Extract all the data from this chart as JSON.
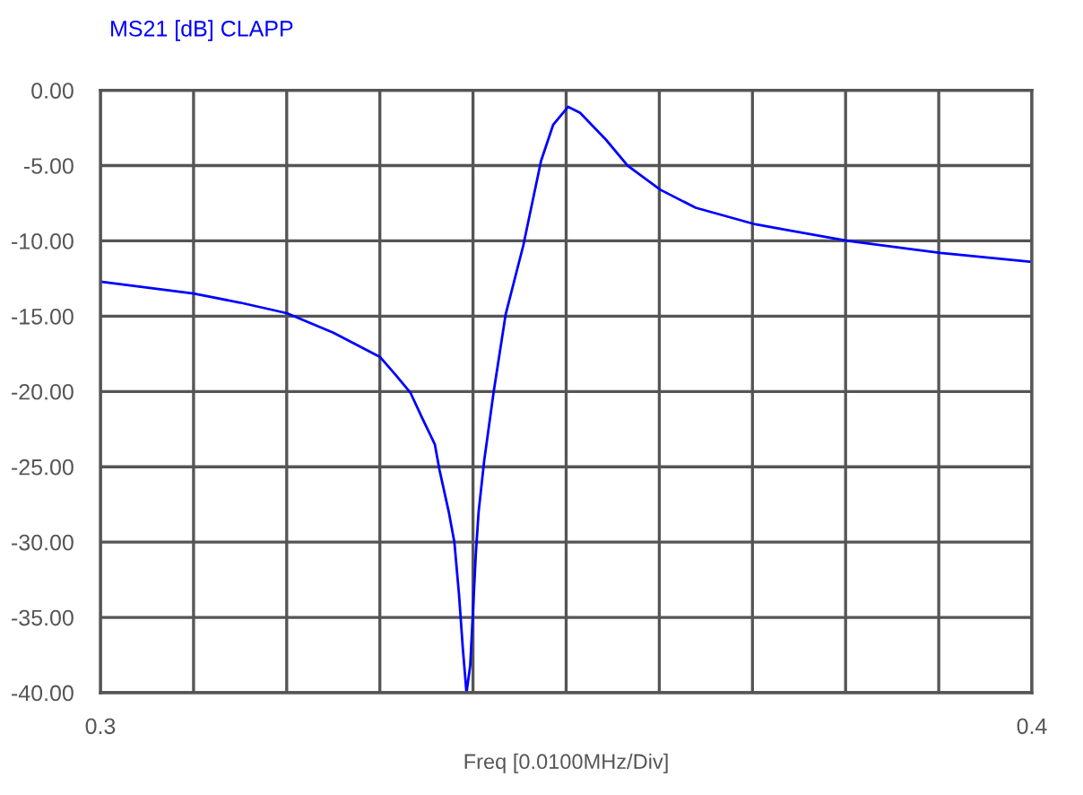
{
  "chart_data": {
    "type": "line",
    "title": "MS21 [dB] CLAPP",
    "xlabel": "Freq [0.0100MHz/Div]",
    "x": [
      0.3,
      0.31,
      0.315,
      0.32,
      0.325,
      0.33,
      0.3317,
      0.3333,
      0.3345,
      0.3359,
      0.3364,
      0.3374,
      0.338,
      0.3385,
      0.3389,
      0.3393,
      0.3397,
      0.34,
      0.3403,
      0.3406,
      0.3412,
      0.3422,
      0.3435,
      0.3454,
      0.3473,
      0.3486,
      0.3502,
      0.3515,
      0.3543,
      0.3566,
      0.3601,
      0.3639,
      0.3703,
      0.3802,
      0.3902,
      0.4
    ],
    "series": [
      {
        "color": "#0000ff",
        "values": [
          -12.7,
          -13.5,
          -14.1,
          -14.8,
          -16.1,
          -17.7,
          -18.9,
          -20.1,
          -21.7,
          -23.5,
          -25.2,
          -28.0,
          -30.0,
          -33.5,
          -37.0,
          -40.0,
          -38.2,
          -34.6,
          -30.8,
          -28.0,
          -24.6,
          -20.1,
          -14.9,
          -10.3,
          -4.7,
          -2.3,
          -1.1,
          -1.5,
          -3.3,
          -5.0,
          -6.6,
          -7.8,
          -8.9,
          -10.0,
          -10.8,
          -11.4
        ]
      }
    ],
    "xlim": [
      0.3,
      0.4
    ],
    "xticks": [
      {
        "value": 0.3,
        "label": "0.3"
      },
      {
        "value": 0.31,
        "label": null
      },
      {
        "value": 0.32,
        "label": null
      },
      {
        "value": 0.33,
        "label": null
      },
      {
        "value": 0.34,
        "label": null
      },
      {
        "value": 0.35,
        "label": null
      },
      {
        "value": 0.36,
        "label": null
      },
      {
        "value": 0.37,
        "label": null
      },
      {
        "value": 0.38,
        "label": null
      },
      {
        "value": 0.39,
        "label": null
      },
      {
        "value": 0.4,
        "label": "0.4"
      }
    ],
    "ylim": [
      -40,
      0
    ],
    "yticks": [
      {
        "value": -40,
        "label": "-40.00"
      },
      {
        "value": -35,
        "label": "-35.00"
      },
      {
        "value": -30,
        "label": "-30.00"
      },
      {
        "value": -25,
        "label": "-25.00"
      },
      {
        "value": -20,
        "label": "-20.00"
      },
      {
        "value": -15,
        "label": "-15.00"
      },
      {
        "value": -10,
        "label": "-10.00"
      },
      {
        "value": -5,
        "label": "-5.00"
      },
      {
        "value": 0,
        "label": "0.00"
      }
    ],
    "grid": true,
    "legend": false,
    "marker": "none",
    "line_style": "solid"
  }
}
